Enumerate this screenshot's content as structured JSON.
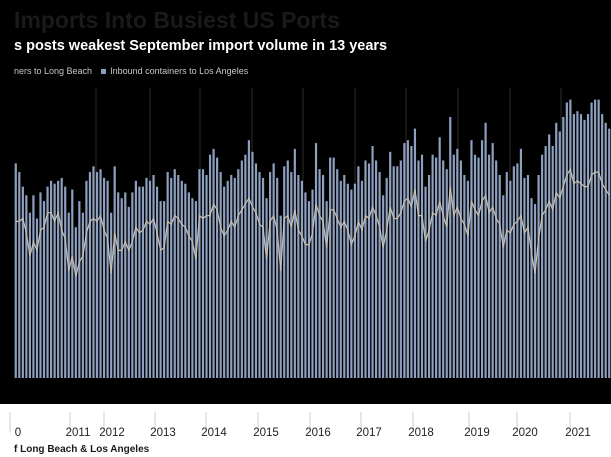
{
  "title": "Imports Into Busiest US Ports",
  "subtitle": "s posts weakest September import volume in 13 years",
  "legend": {
    "series_a_label": "ners to Long Beach",
    "series_b_label": "Inbound containers to Los Angeles"
  },
  "source": "f Long Beach & Los Angeles",
  "colors": {
    "background": "#000000",
    "bars_los_angeles": "#8ea0c0",
    "line_long_beach": "#c9c0b2",
    "gridline": "#2b2b2b",
    "axis_band": "#ffffff"
  },
  "chart_data": {
    "type": "bar",
    "grid": true,
    "x_tick_labels": [
      "0",
      "2011",
      "2012",
      "2013",
      "2014",
      "2015",
      "2016",
      "2017",
      "2018",
      "2019",
      "2020",
      "2021"
    ],
    "x_start": "2010-10",
    "x_end": "2021-10",
    "series": [
      {
        "name": "Inbound containers to Los Angeles",
        "type": "bar",
        "values": [
          0.74,
          0.71,
          0.66,
          0.63,
          0.57,
          0.63,
          0.55,
          0.64,
          0.61,
          0.66,
          0.68,
          0.67,
          0.68,
          0.69,
          0.66,
          0.57,
          0.65,
          0.52,
          0.61,
          0.57,
          0.68,
          0.71,
          0.73,
          0.71,
          0.72,
          0.69,
          0.68,
          0.57,
          0.73,
          0.64,
          0.62,
          0.64,
          0.59,
          0.64,
          0.68,
          0.66,
          0.66,
          0.69,
          0.68,
          0.7,
          0.66,
          0.61,
          0.61,
          0.71,
          0.69,
          0.72,
          0.7,
          0.68,
          0.67,
          0.64,
          0.62,
          0.61,
          0.72,
          0.72,
          0.7,
          0.77,
          0.79,
          0.76,
          0.71,
          0.66,
          0.68,
          0.7,
          0.69,
          0.72,
          0.75,
          0.77,
          0.82,
          0.78,
          0.74,
          0.71,
          0.69,
          0.62,
          0.71,
          0.74,
          0.69,
          0.56,
          0.73,
          0.75,
          0.71,
          0.79,
          0.7,
          0.68,
          0.64,
          0.61,
          0.65,
          0.81,
          0.72,
          0.7,
          0.61,
          0.76,
          0.76,
          0.72,
          0.68,
          0.7,
          0.67,
          0.65,
          0.67,
          0.73,
          0.68,
          0.75,
          0.74,
          0.8,
          0.75,
          0.71,
          0.63,
          0.69,
          0.78,
          0.73,
          0.73,
          0.75,
          0.81,
          0.82,
          0.8,
          0.86,
          0.75,
          0.77,
          0.66,
          0.7,
          0.77,
          0.76,
          0.83,
          0.75,
          0.72,
          0.9,
          0.77,
          0.79,
          0.75,
          0.7,
          0.68,
          0.82,
          0.77,
          0.76,
          0.82,
          0.88,
          0.77,
          0.81,
          0.75,
          0.7,
          0.63,
          0.71,
          0.68,
          0.73,
          0.74,
          0.79,
          0.69,
          0.7,
          0.62,
          0.6,
          0.7,
          0.77,
          0.8,
          0.84,
          0.8,
          0.88,
          0.85,
          0.9,
          0.95,
          0.96,
          0.91,
          0.92,
          0.91,
          0.89,
          0.91,
          0.95,
          0.96,
          0.96,
          0.91,
          0.88,
          0.86
        ]
      },
      {
        "name": "ners to Long Beach",
        "type": "line",
        "values": [
          0.54,
          0.54,
          0.55,
          0.5,
          0.42,
          0.47,
          0.44,
          0.51,
          0.52,
          0.57,
          0.57,
          0.54,
          0.57,
          0.51,
          0.48,
          0.37,
          0.42,
          0.35,
          0.4,
          0.42,
          0.5,
          0.54,
          0.55,
          0.54,
          0.56,
          0.51,
          0.48,
          0.36,
          0.5,
          0.44,
          0.44,
          0.47,
          0.44,
          0.47,
          0.52,
          0.5,
          0.51,
          0.54,
          0.53,
          0.55,
          0.5,
          0.44,
          0.45,
          0.54,
          0.53,
          0.56,
          0.55,
          0.53,
          0.52,
          0.49,
          0.47,
          0.41,
          0.56,
          0.55,
          0.56,
          0.56,
          0.6,
          0.58,
          0.52,
          0.49,
          0.51,
          0.54,
          0.52,
          0.56,
          0.58,
          0.6,
          0.62,
          0.59,
          0.57,
          0.53,
          0.52,
          0.41,
          0.54,
          0.56,
          0.51,
          0.37,
          0.55,
          0.56,
          0.52,
          0.58,
          0.51,
          0.49,
          0.46,
          0.46,
          0.5,
          0.6,
          0.56,
          0.54,
          0.45,
          0.58,
          0.58,
          0.55,
          0.52,
          0.54,
          0.51,
          0.46,
          0.49,
          0.54,
          0.51,
          0.56,
          0.55,
          0.59,
          0.56,
          0.52,
          0.45,
          0.51,
          0.59,
          0.55,
          0.55,
          0.57,
          0.61,
          0.62,
          0.59,
          0.65,
          0.56,
          0.56,
          0.47,
          0.51,
          0.57,
          0.56,
          0.61,
          0.56,
          0.52,
          0.66,
          0.56,
          0.59,
          0.55,
          0.53,
          0.49,
          0.61,
          0.58,
          0.56,
          0.61,
          0.63,
          0.57,
          0.59,
          0.55,
          0.53,
          0.45,
          0.51,
          0.5,
          0.53,
          0.54,
          0.56,
          0.5,
          0.52,
          0.43,
          0.36,
          0.48,
          0.56,
          0.58,
          0.61,
          0.58,
          0.64,
          0.62,
          0.66,
          0.7,
          0.72,
          0.67,
          0.68,
          0.67,
          0.66,
          0.66,
          0.7,
          0.71,
          0.71,
          0.67,
          0.65,
          0.63
        ]
      }
    ]
  }
}
